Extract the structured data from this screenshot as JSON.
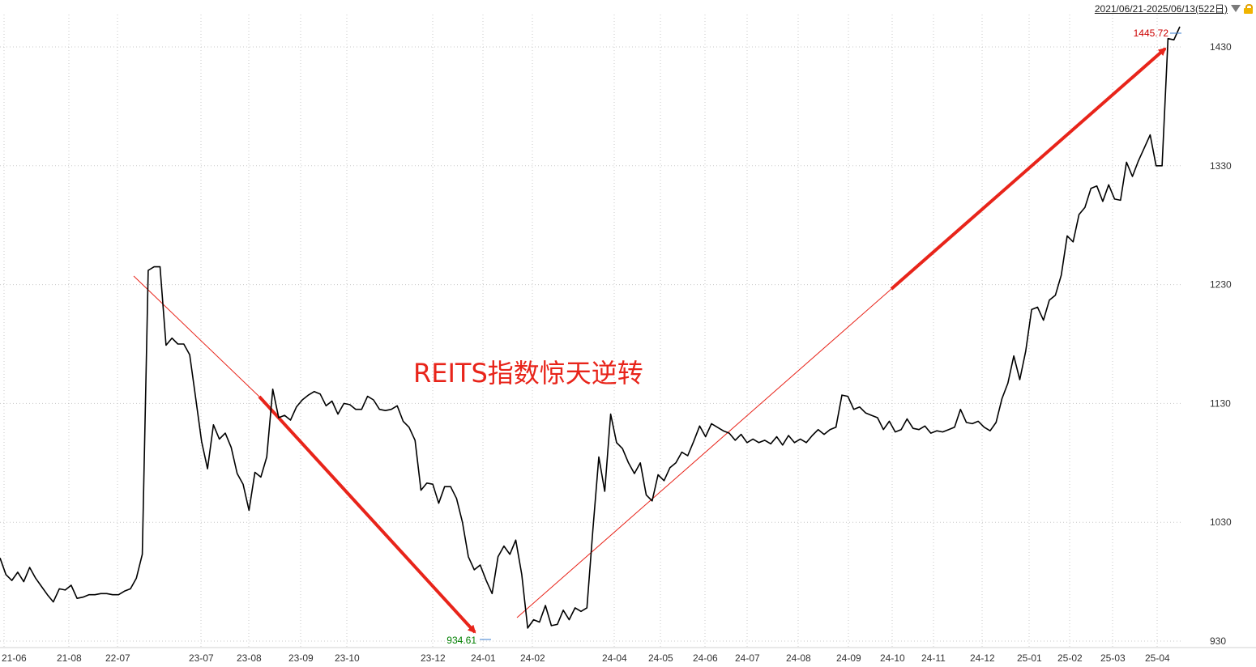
{
  "range_label": "2021/06/21-2025/06/13(522日)",
  "dropdown_icon": "triangle-down-icon",
  "lock_icon": "unlock-icon",
  "chart_data": {
    "type": "line",
    "title": "",
    "xlabel": "",
    "ylabel": "",
    "annotation": "REITS指数惊天逆转",
    "ylim": [
      930,
      1480
    ],
    "y_ticks": [
      930,
      1030,
      1130,
      1230,
      1330,
      1430
    ],
    "x_tick_labels": [
      "21-06",
      "21-08",
      "22-07",
      "23-07",
      "23-08",
      "23-09",
      "23-10",
      "23-12",
      "24-01",
      "24-02",
      "24-04",
      "24-05",
      "24-06",
      "24-07",
      "24-08",
      "24-09",
      "24-10",
      "24-11",
      "24-12",
      "25-01",
      "25-02",
      "25-03",
      "25-04"
    ],
    "min_label": "934.61",
    "max_label": "1445.72",
    "colors": {
      "line": "#000000",
      "arrow": "#e8241a",
      "min": "#008000",
      "max": "#cc0000",
      "grid": "#c8c8c8"
    },
    "series": [
      {
        "values": [
          1000,
          986,
          981,
          988,
          980,
          992,
          983,
          976,
          969,
          963,
          974,
          973,
          977,
          966,
          967,
          969,
          969,
          970,
          970,
          969,
          969,
          972,
          974,
          983,
          1003,
          1242,
          1245,
          1245,
          1179,
          1185,
          1180,
          1180,
          1171,
          1135,
          1098,
          1075,
          1112,
          1100,
          1105,
          1093,
          1071,
          1062,
          1040,
          1072,
          1068,
          1085,
          1142,
          1118,
          1120,
          1116,
          1127,
          1133,
          1137,
          1140,
          1138,
          1128,
          1132,
          1121,
          1130,
          1129,
          1125,
          1125,
          1136,
          1133,
          1125,
          1124,
          1125,
          1128,
          1115,
          1110,
          1099,
          1057,
          1063,
          1062,
          1046,
          1060,
          1060,
          1050,
          1030,
          1001,
          990,
          994,
          981,
          970,
          1001,
          1010,
          1003,
          1015,
          986,
          941,
          948,
          946,
          960,
          943,
          944,
          956,
          948,
          958,
          955,
          958,
          1024,
          1085,
          1056,
          1121,
          1097,
          1092,
          1080,
          1071,
          1080,
          1053,
          1048,
          1070,
          1065,
          1076,
          1080,
          1089,
          1086,
          1098,
          1111,
          1102,
          1113,
          1110,
          1107,
          1105,
          1099,
          1104,
          1097,
          1100,
          1097,
          1099,
          1096,
          1102,
          1095,
          1103,
          1097,
          1100,
          1097,
          1103,
          1108,
          1104,
          1108,
          1110,
          1137,
          1136,
          1125,
          1127,
          1122,
          1120,
          1118,
          1108,
          1115,
          1106,
          1108,
          1117,
          1109,
          1108,
          1111,
          1105,
          1107,
          1106,
          1108,
          1110,
          1125,
          1114,
          1113,
          1115,
          1110,
          1107,
          1114,
          1134,
          1147,
          1170,
          1150,
          1174,
          1209,
          1211,
          1200,
          1217,
          1221,
          1238,
          1271,
          1266,
          1289,
          1295,
          1311,
          1313,
          1300,
          1314,
          1302,
          1301,
          1333,
          1321,
          1334,
          1345,
          1356,
          1330,
          1330,
          1437,
          1436,
          1447
        ]
      }
    ]
  }
}
